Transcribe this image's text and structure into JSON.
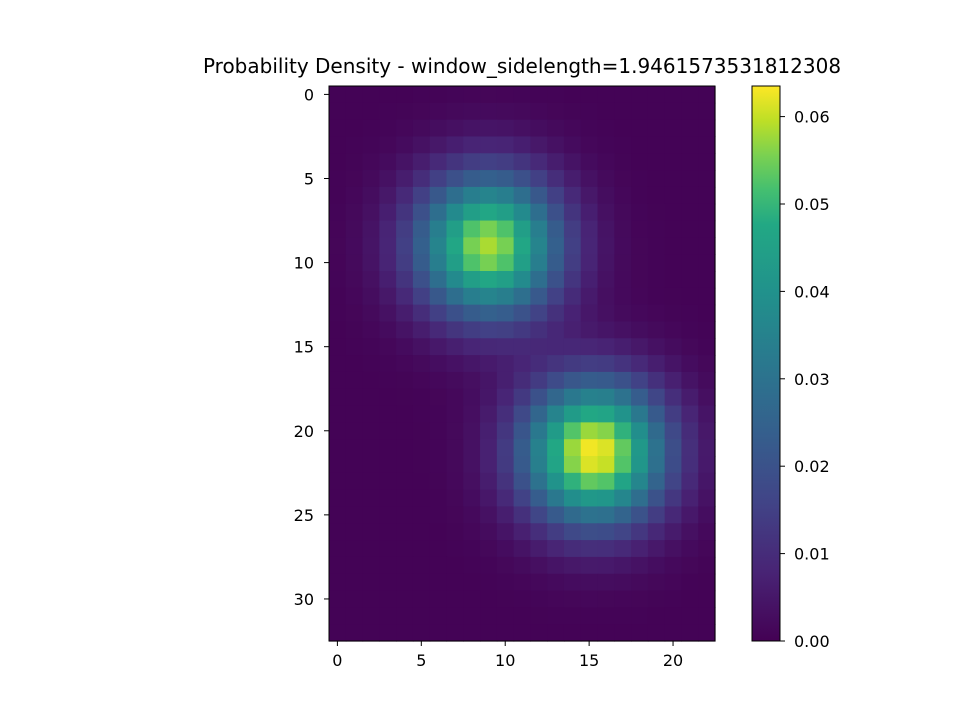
{
  "chart_data": {
    "type": "heatmap",
    "title": "Probability Density - window_sidelength=1.9461573531812308",
    "xlabel": "",
    "ylabel": "",
    "n_cols": 23,
    "n_rows": 33,
    "x_ticks": [
      0,
      5,
      10,
      15,
      20
    ],
    "x_tick_labels": [
      "0",
      "5",
      "10",
      "15",
      "20"
    ],
    "y_ticks": [
      0,
      5,
      10,
      15,
      20,
      25,
      30
    ],
    "y_tick_labels": [
      "0",
      "5",
      "10",
      "15",
      "20",
      "25",
      "30"
    ],
    "colormap": "viridis",
    "colorbar": {
      "min": 0.0,
      "max": 0.0635,
      "ticks": [
        0.0,
        0.01,
        0.02,
        0.03,
        0.04,
        0.05,
        0.06
      ],
      "tick_labels": [
        "0.00",
        "0.01",
        "0.02",
        "0.03",
        "0.04",
        "0.05",
        "0.06"
      ]
    },
    "density_components": [
      {
        "center_x": 9.0,
        "center_y": 9.0,
        "sigma": 3.0,
        "peak": 0.058
      },
      {
        "center_x": 15.3,
        "center_y": 21.3,
        "sigma": 3.0,
        "peak": 0.063
      }
    ]
  }
}
